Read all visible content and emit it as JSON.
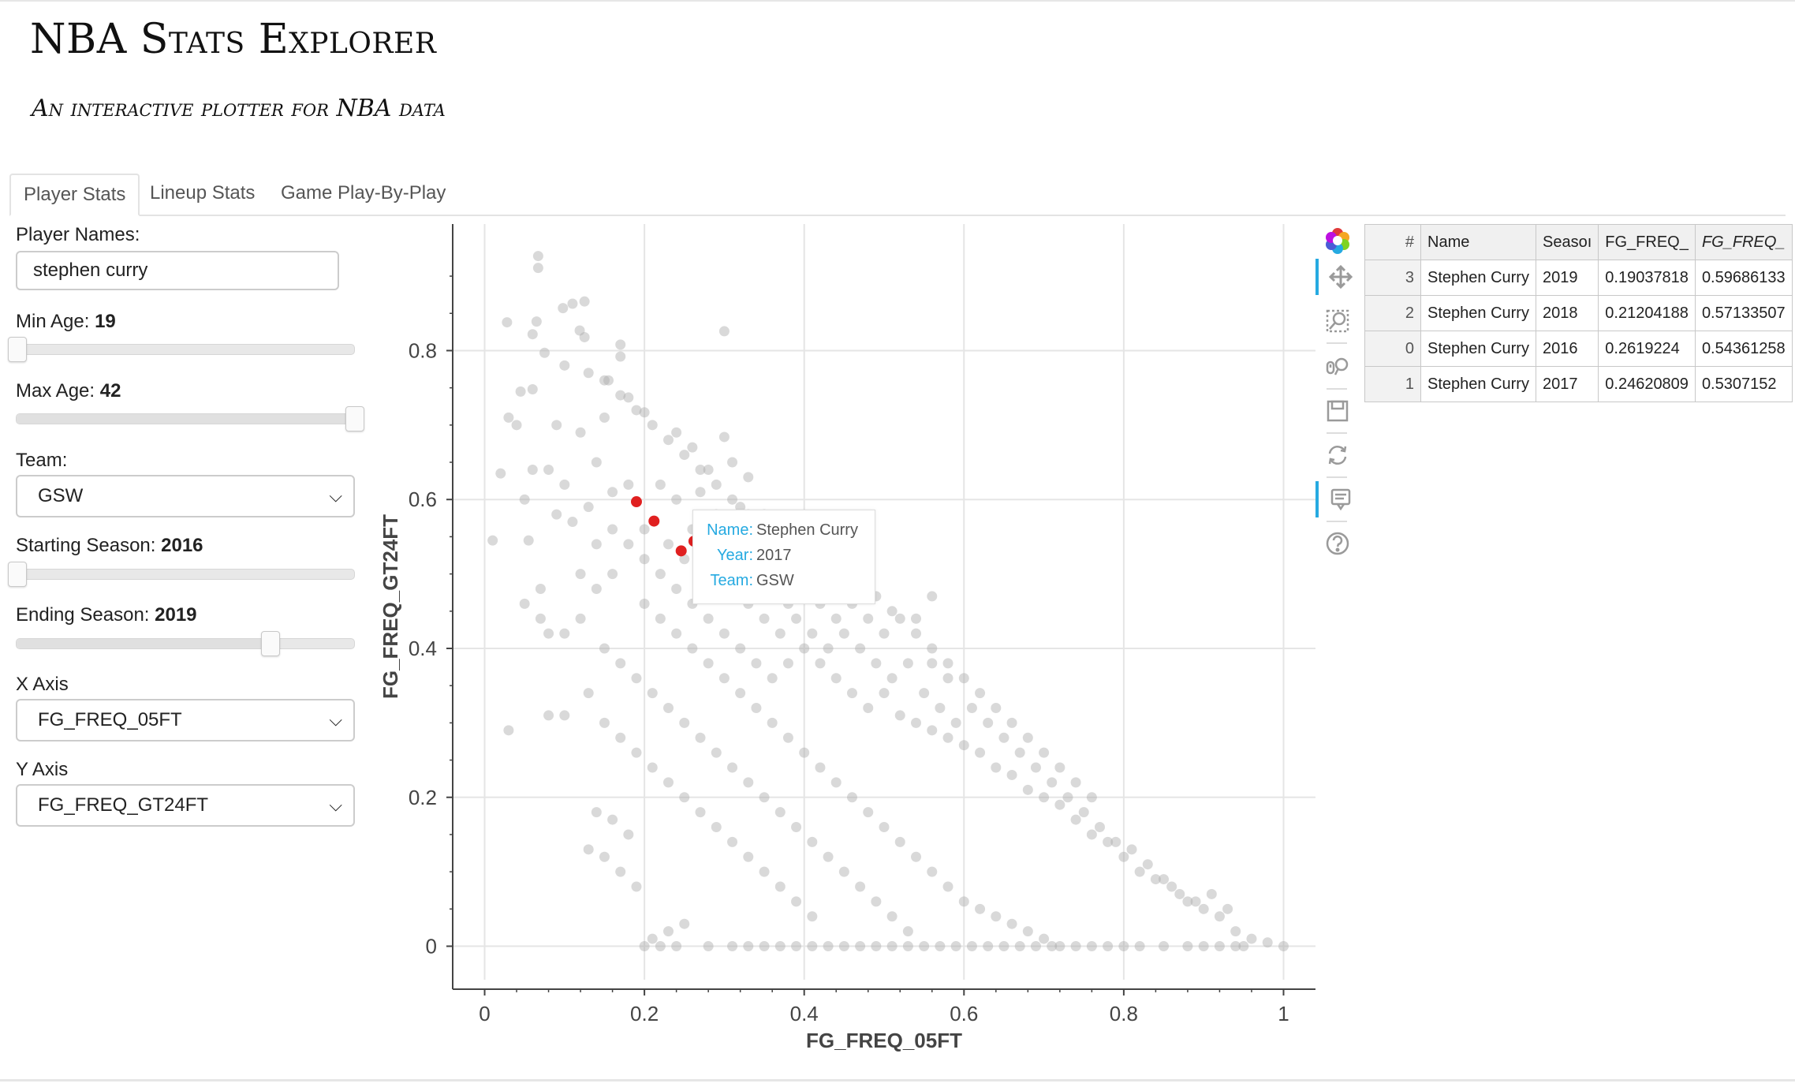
{
  "app": {
    "title": "NBA Stats Explorer",
    "subtitle": "An interactive plotter for NBA data"
  },
  "tabs": [
    {
      "label": "Player Stats",
      "active": true
    },
    {
      "label": "Lineup Stats",
      "active": false
    },
    {
      "label": "Game Play-By-Play",
      "active": false
    }
  ],
  "controls": {
    "player_names": {
      "label": "Player Names:",
      "value": "stephen curry"
    },
    "min_age": {
      "label": "Min Age: ",
      "value": "19",
      "fraction": 0.0
    },
    "max_age": {
      "label": "Max Age: ",
      "value": "42",
      "fraction": 1.0
    },
    "team": {
      "label": "Team:",
      "value": "GSW"
    },
    "starting_season": {
      "label": "Starting Season: ",
      "value": "2016",
      "fraction": 0.0
    },
    "ending_season": {
      "label": "Ending Season: ",
      "value": "2019",
      "fraction": 0.75
    },
    "x_axis": {
      "label": "X Axis",
      "value": "FG_FREQ_05FT"
    },
    "y_axis": {
      "label": "Y Axis",
      "value": "FG_FREQ_GT24FT"
    }
  },
  "colors": {
    "accent": "#26aae1",
    "point": "#aaaaaa",
    "highlight": "#e02020"
  },
  "toolbar": {
    "tools": [
      {
        "icon": "bokeh-logo-icon",
        "active": false
      },
      {
        "icon": "pan-icon",
        "active": true
      },
      {
        "icon": "box-zoom-icon",
        "active": false
      },
      {
        "icon": "wheel-zoom-icon",
        "active": false
      },
      {
        "icon": "save-icon",
        "active": false
      },
      {
        "icon": "reset-icon",
        "active": false
      },
      {
        "icon": "hover-icon",
        "active": true
      },
      {
        "icon": "help-icon",
        "active": false
      }
    ]
  },
  "tooltip": {
    "name_key": "Name:",
    "name_val": "Stephen Curry",
    "year_key": "Year:",
    "year_val": "2017",
    "team_key": "Team:",
    "team_val": "GSW"
  },
  "table": {
    "headers": [
      "#",
      "Name",
      "Seasoı",
      "FG_FREQ_",
      "FG_FREQ_"
    ],
    "rows": [
      [
        "3",
        "Stephen Curry",
        "2019",
        "0.19037818",
        "0.59686133"
      ],
      [
        "2",
        "Stephen Curry",
        "2018",
        "0.21204188",
        "0.57133507"
      ],
      [
        "0",
        "Stephen Curry",
        "2016",
        "0.2619224",
        "0.54361258"
      ],
      [
        "1",
        "Stephen Curry",
        "2017",
        "0.24620809",
        "0.5307152"
      ]
    ]
  },
  "chart_data": {
    "type": "scatter",
    "xlabel": "FG_FREQ_05FT",
    "ylabel": "FG_FREQ_GT24FT",
    "xlim": [
      -0.04,
      1.04
    ],
    "ylim": [
      -0.045,
      0.97
    ],
    "xticks": [
      "0",
      "0.2",
      "0.4",
      "0.6",
      "0.8",
      "1"
    ],
    "yticks": [
      "0",
      "0.2",
      "0.4",
      "0.6",
      "0.8"
    ],
    "grid": true,
    "highlighted": [
      {
        "x": 0.19,
        "y": 0.597
      },
      {
        "x": 0.212,
        "y": 0.571
      },
      {
        "x": 0.246,
        "y": 0.531
      },
      {
        "x": 0.262,
        "y": 0.544
      }
    ],
    "points": [
      [
        0.067,
        0.927
      ],
      [
        0.067,
        0.911
      ],
      [
        0.028,
        0.838
      ],
      [
        0.065,
        0.839
      ],
      [
        0.11,
        0.863
      ],
      [
        0.125,
        0.866
      ],
      [
        0.098,
        0.857
      ],
      [
        0.3,
        0.826
      ],
      [
        0.06,
        0.822
      ],
      [
        0.119,
        0.827
      ],
      [
        0.075,
        0.797
      ],
      [
        0.17,
        0.792
      ],
      [
        0.17,
        0.808
      ],
      [
        0.125,
        0.818
      ],
      [
        0.13,
        0.77
      ],
      [
        0.155,
        0.76
      ],
      [
        0.1,
        0.78
      ],
      [
        0.045,
        0.745
      ],
      [
        0.06,
        0.748
      ],
      [
        0.2,
        0.717
      ],
      [
        0.18,
        0.737
      ],
      [
        0.15,
        0.71
      ],
      [
        0.24,
        0.69
      ],
      [
        0.26,
        0.67
      ],
      [
        0.3,
        0.684
      ],
      [
        0.31,
        0.65
      ],
      [
        0.28,
        0.64
      ],
      [
        0.33,
        0.63
      ],
      [
        0.03,
        0.71
      ],
      [
        0.04,
        0.7
      ],
      [
        0.09,
        0.7
      ],
      [
        0.12,
        0.69
      ],
      [
        0.14,
        0.65
      ],
      [
        0.1,
        0.62
      ],
      [
        0.08,
        0.64
      ],
      [
        0.06,
        0.64
      ],
      [
        0.02,
        0.635
      ],
      [
        0.05,
        0.6
      ],
      [
        0.09,
        0.58
      ],
      [
        0.11,
        0.57
      ],
      [
        0.13,
        0.59
      ],
      [
        0.16,
        0.61
      ],
      [
        0.18,
        0.62
      ],
      [
        0.22,
        0.62
      ],
      [
        0.24,
        0.6
      ],
      [
        0.27,
        0.61
      ],
      [
        0.29,
        0.58
      ],
      [
        0.32,
        0.59
      ],
      [
        0.35,
        0.58
      ],
      [
        0.38,
        0.56
      ],
      [
        0.01,
        0.545
      ],
      [
        0.055,
        0.545
      ],
      [
        0.07,
        0.48
      ],
      [
        0.05,
        0.46
      ],
      [
        0.07,
        0.44
      ],
      [
        0.08,
        0.42
      ],
      [
        0.1,
        0.42
      ],
      [
        0.12,
        0.44
      ],
      [
        0.14,
        0.48
      ],
      [
        0.16,
        0.5
      ],
      [
        0.2,
        0.52
      ],
      [
        0.22,
        0.5
      ],
      [
        0.24,
        0.48
      ],
      [
        0.26,
        0.46
      ],
      [
        0.28,
        0.44
      ],
      [
        0.3,
        0.42
      ],
      [
        0.32,
        0.4
      ],
      [
        0.34,
        0.38
      ],
      [
        0.36,
        0.36
      ],
      [
        0.38,
        0.38
      ],
      [
        0.4,
        0.4
      ],
      [
        0.42,
        0.38
      ],
      [
        0.44,
        0.36
      ],
      [
        0.46,
        0.34
      ],
      [
        0.48,
        0.32
      ],
      [
        0.5,
        0.34
      ],
      [
        0.52,
        0.31
      ],
      [
        0.54,
        0.3
      ],
      [
        0.56,
        0.29
      ],
      [
        0.58,
        0.28
      ],
      [
        0.6,
        0.27
      ],
      [
        0.62,
        0.26
      ],
      [
        0.64,
        0.24
      ],
      [
        0.66,
        0.23
      ],
      [
        0.68,
        0.21
      ],
      [
        0.7,
        0.2
      ],
      [
        0.72,
        0.19
      ],
      [
        0.74,
        0.17
      ],
      [
        0.76,
        0.15
      ],
      [
        0.78,
        0.14
      ],
      [
        0.8,
        0.12
      ],
      [
        0.82,
        0.1
      ],
      [
        0.84,
        0.09
      ],
      [
        0.86,
        0.08
      ],
      [
        0.88,
        0.06
      ],
      [
        0.9,
        0.05
      ],
      [
        0.92,
        0.04
      ],
      [
        0.94,
        0.02
      ],
      [
        0.96,
        0.01
      ],
      [
        0.98,
        0.005
      ],
      [
        0.15,
        0.4
      ],
      [
        0.17,
        0.38
      ],
      [
        0.19,
        0.36
      ],
      [
        0.21,
        0.34
      ],
      [
        0.23,
        0.32
      ],
      [
        0.25,
        0.3
      ],
      [
        0.27,
        0.28
      ],
      [
        0.29,
        0.26
      ],
      [
        0.31,
        0.24
      ],
      [
        0.33,
        0.22
      ],
      [
        0.35,
        0.2
      ],
      [
        0.37,
        0.18
      ],
      [
        0.39,
        0.16
      ],
      [
        0.41,
        0.14
      ],
      [
        0.43,
        0.12
      ],
      [
        0.45,
        0.1
      ],
      [
        0.47,
        0.08
      ],
      [
        0.49,
        0.06
      ],
      [
        0.51,
        0.04
      ],
      [
        0.53,
        0.02
      ],
      [
        0.12,
        0.5
      ],
      [
        0.14,
        0.54
      ],
      [
        0.16,
        0.56
      ],
      [
        0.18,
        0.54
      ],
      [
        0.2,
        0.56
      ],
      [
        0.23,
        0.54
      ],
      [
        0.25,
        0.52
      ],
      [
        0.28,
        0.5
      ],
      [
        0.3,
        0.48
      ],
      [
        0.33,
        0.46
      ],
      [
        0.35,
        0.44
      ],
      [
        0.37,
        0.42
      ],
      [
        0.39,
        0.44
      ],
      [
        0.41,
        0.42
      ],
      [
        0.43,
        0.4
      ],
      [
        0.45,
        0.42
      ],
      [
        0.47,
        0.4
      ],
      [
        0.49,
        0.38
      ],
      [
        0.51,
        0.36
      ],
      [
        0.53,
        0.38
      ],
      [
        0.55,
        0.34
      ],
      [
        0.57,
        0.32
      ],
      [
        0.59,
        0.3
      ],
      [
        0.61,
        0.32
      ],
      [
        0.63,
        0.3
      ],
      [
        0.65,
        0.28
      ],
      [
        0.67,
        0.26
      ],
      [
        0.69,
        0.24
      ],
      [
        0.71,
        0.22
      ],
      [
        0.73,
        0.2
      ],
      [
        0.75,
        0.18
      ],
      [
        0.77,
        0.16
      ],
      [
        0.79,
        0.14
      ],
      [
        0.81,
        0.13
      ],
      [
        0.83,
        0.11
      ],
      [
        0.85,
        0.09
      ],
      [
        0.87,
        0.07
      ],
      [
        0.89,
        0.06
      ],
      [
        0.91,
        0.07
      ],
      [
        0.93,
        0.05
      ],
      [
        0.2,
        0.46
      ],
      [
        0.22,
        0.44
      ],
      [
        0.24,
        0.42
      ],
      [
        0.26,
        0.4
      ],
      [
        0.28,
        0.38
      ],
      [
        0.3,
        0.36
      ],
      [
        0.32,
        0.34
      ],
      [
        0.34,
        0.32
      ],
      [
        0.36,
        0.3
      ],
      [
        0.38,
        0.28
      ],
      [
        0.4,
        0.26
      ],
      [
        0.42,
        0.24
      ],
      [
        0.44,
        0.22
      ],
      [
        0.46,
        0.2
      ],
      [
        0.48,
        0.18
      ],
      [
        0.5,
        0.16
      ],
      [
        0.52,
        0.14
      ],
      [
        0.54,
        0.12
      ],
      [
        0.56,
        0.1
      ],
      [
        0.58,
        0.08
      ],
      [
        0.6,
        0.06
      ],
      [
        0.62,
        0.05
      ],
      [
        0.64,
        0.04
      ],
      [
        0.66,
        0.03
      ],
      [
        0.68,
        0.02
      ],
      [
        0.7,
        0.01
      ],
      [
        0.72,
        0.0
      ],
      [
        0.74,
        0.0
      ],
      [
        0.76,
        0.0
      ],
      [
        0.78,
        0.0
      ],
      [
        0.2,
        0.0
      ],
      [
        0.22,
        0.0
      ],
      [
        0.24,
        0.0
      ],
      [
        0.28,
        0.0
      ],
      [
        0.31,
        0.0
      ],
      [
        0.33,
        0.0
      ],
      [
        0.35,
        0.0
      ],
      [
        0.37,
        0.0
      ],
      [
        0.39,
        0.0
      ],
      [
        0.41,
        0.0
      ],
      [
        0.43,
        0.0
      ],
      [
        0.45,
        0.0
      ],
      [
        0.47,
        0.0
      ],
      [
        0.49,
        0.0
      ],
      [
        0.51,
        0.0
      ],
      [
        0.53,
        0.0
      ],
      [
        0.55,
        0.0
      ],
      [
        0.57,
        0.0
      ],
      [
        0.59,
        0.0
      ],
      [
        0.61,
        0.0
      ],
      [
        0.63,
        0.0
      ],
      [
        0.65,
        0.0
      ],
      [
        0.67,
        0.0
      ],
      [
        0.69,
        0.0
      ],
      [
        0.71,
        0.0
      ],
      [
        0.8,
        0.0
      ],
      [
        0.82,
        0.0
      ],
      [
        0.85,
        0.0
      ],
      [
        0.88,
        0.0
      ],
      [
        0.9,
        0.0
      ],
      [
        0.92,
        0.0
      ],
      [
        0.94,
        0.0
      ],
      [
        0.95,
        0.0
      ],
      [
        1.0,
        0.0
      ],
      [
        0.1,
        0.31
      ],
      [
        0.13,
        0.34
      ],
      [
        0.15,
        0.3
      ],
      [
        0.17,
        0.28
      ],
      [
        0.19,
        0.26
      ],
      [
        0.21,
        0.24
      ],
      [
        0.23,
        0.22
      ],
      [
        0.25,
        0.2
      ],
      [
        0.27,
        0.18
      ],
      [
        0.29,
        0.16
      ],
      [
        0.31,
        0.14
      ],
      [
        0.33,
        0.12
      ],
      [
        0.35,
        0.1
      ],
      [
        0.37,
        0.08
      ],
      [
        0.39,
        0.06
      ],
      [
        0.41,
        0.04
      ],
      [
        0.14,
        0.18
      ],
      [
        0.16,
        0.17
      ],
      [
        0.18,
        0.15
      ],
      [
        0.13,
        0.13
      ],
      [
        0.15,
        0.12
      ],
      [
        0.17,
        0.1
      ],
      [
        0.19,
        0.08
      ],
      [
        0.21,
        0.01
      ],
      [
        0.23,
        0.02
      ],
      [
        0.25,
        0.03
      ],
      [
        0.03,
        0.29
      ],
      [
        0.08,
        0.31
      ],
      [
        0.26,
        0.56
      ],
      [
        0.29,
        0.52
      ],
      [
        0.31,
        0.5
      ],
      [
        0.34,
        0.5
      ],
      [
        0.36,
        0.48
      ],
      [
        0.38,
        0.46
      ],
      [
        0.4,
        0.48
      ],
      [
        0.42,
        0.46
      ],
      [
        0.44,
        0.44
      ],
      [
        0.46,
        0.46
      ],
      [
        0.48,
        0.44
      ],
      [
        0.5,
        0.42
      ],
      [
        0.52,
        0.44
      ],
      [
        0.54,
        0.42
      ],
      [
        0.56,
        0.4
      ],
      [
        0.58,
        0.38
      ],
      [
        0.6,
        0.36
      ],
      [
        0.62,
        0.34
      ],
      [
        0.64,
        0.32
      ],
      [
        0.66,
        0.3
      ],
      [
        0.68,
        0.28
      ],
      [
        0.7,
        0.26
      ],
      [
        0.72,
        0.24
      ],
      [
        0.74,
        0.22
      ],
      [
        0.76,
        0.2
      ],
      [
        0.58,
        0.36
      ],
      [
        0.56,
        0.38
      ],
      [
        0.54,
        0.44
      ],
      [
        0.56,
        0.47
      ],
      [
        0.51,
        0.45
      ],
      [
        0.49,
        0.47
      ],
      [
        0.47,
        0.49
      ],
      [
        0.45,
        0.5
      ],
      [
        0.43,
        0.48
      ],
      [
        0.41,
        0.5
      ],
      [
        0.39,
        0.52
      ],
      [
        0.37,
        0.54
      ],
      [
        0.35,
        0.56
      ],
      [
        0.33,
        0.58
      ],
      [
        0.31,
        0.6
      ],
      [
        0.29,
        0.62
      ],
      [
        0.27,
        0.64
      ],
      [
        0.25,
        0.66
      ],
      [
        0.23,
        0.68
      ],
      [
        0.21,
        0.7
      ],
      [
        0.19,
        0.72
      ],
      [
        0.17,
        0.74
      ],
      [
        0.15,
        0.76
      ]
    ]
  }
}
